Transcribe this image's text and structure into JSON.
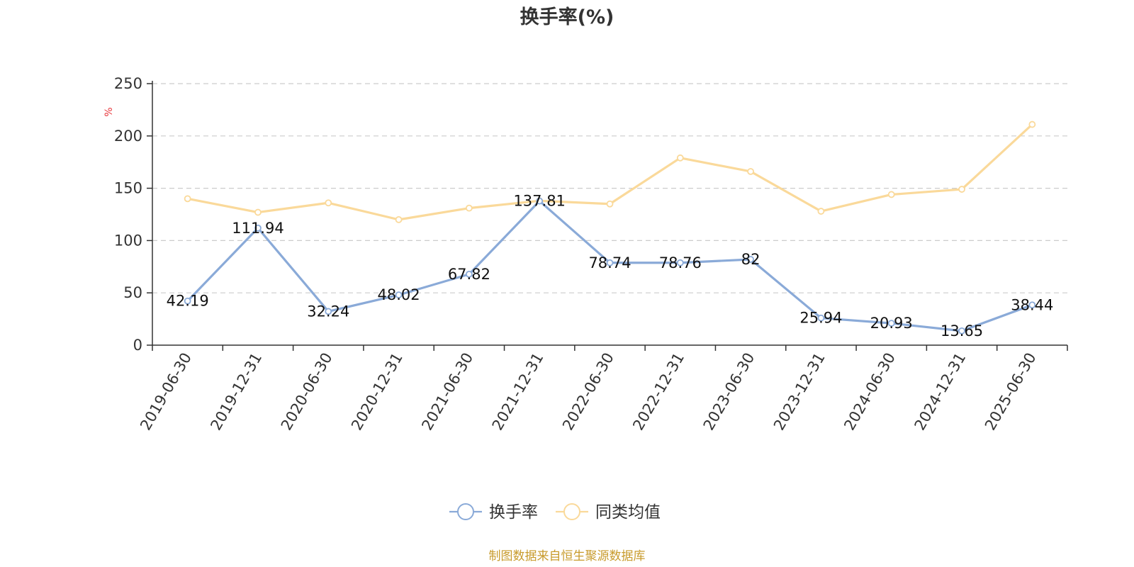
{
  "title": "换手率(%)",
  "source": "制图数据来自恒生聚源数据库",
  "colors": {
    "series1": "#8aaad8",
    "series2": "#fad99a",
    "unit": "#e8383d",
    "source": "#c89b2c",
    "axis": "#333333",
    "grid": "#cccccc"
  },
  "chart_data": {
    "type": "line",
    "title": "换手率(%)",
    "ylabel": "%",
    "xlabel": "",
    "ylim": [
      0,
      250
    ],
    "yticks": [
      0,
      50,
      100,
      150,
      200,
      250
    ],
    "grid": true,
    "legend_position": "bottom",
    "categories": [
      "2019-06-30",
      "2019-12-31",
      "2020-06-30",
      "2020-12-31",
      "2021-06-30",
      "2021-12-31",
      "2022-06-30",
      "2022-12-31",
      "2023-06-30",
      "2023-12-31",
      "2024-06-30",
      "2024-12-31",
      "2025-06-30"
    ],
    "series": [
      {
        "name": "换手率",
        "values": [
          42.19,
          111.94,
          32.24,
          48.02,
          67.82,
          137.81,
          78.74,
          78.76,
          82,
          25.94,
          20.93,
          13.65,
          38.44
        ],
        "labels": [
          "42.19",
          "111.94",
          "32.24",
          "48.02",
          "67.82",
          "137.81",
          "78.74",
          "78.76",
          "82",
          "25.94",
          "20.93",
          "13.65",
          "38.44"
        ]
      },
      {
        "name": "同类均值",
        "values": [
          140,
          127,
          136,
          120,
          131,
          138,
          135,
          179,
          166,
          128,
          144,
          149,
          211
        ]
      }
    ]
  }
}
